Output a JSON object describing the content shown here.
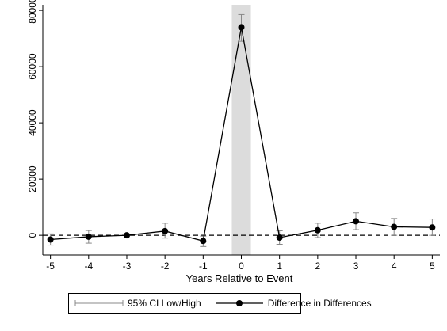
{
  "chart_data": {
    "type": "line",
    "title": "",
    "xlabel": "Years Relative to Event",
    "ylabel": "",
    "x": [
      -5,
      -4,
      -3,
      -2,
      -1,
      0,
      1,
      2,
      3,
      4,
      5
    ],
    "x_ticks": [
      "-5",
      "-4",
      "-3",
      "-2",
      "-1",
      "0",
      "1",
      "2",
      "3",
      "4",
      "5"
    ],
    "y_ticks": [
      "0",
      "20000",
      "40000",
      "60000",
      "80000"
    ],
    "y_tick_values": [
      0,
      20000,
      40000,
      60000,
      80000
    ],
    "xlim": [
      -5.2,
      5.2
    ],
    "ylim": [
      -7000,
      82000
    ],
    "grid": false,
    "legend_position": "bottom",
    "reference_line_y": 0,
    "shaded_band_x": [
      -0.25,
      0.25
    ],
    "series": [
      {
        "name": "Difference in Differences",
        "values": [
          -1500,
          -500,
          0,
          1500,
          -2000,
          74000,
          -800,
          1800,
          5000,
          3000,
          2800
        ],
        "color": "#000000"
      },
      {
        "name": "95% CI Low/High",
        "low": [
          -3500,
          -2800,
          -500,
          -1000,
          -4000,
          69000,
          -3200,
          -800,
          2000,
          0,
          0
        ],
        "high": [
          500,
          1700,
          500,
          4300,
          -300,
          78500,
          1600,
          4300,
          8000,
          6000,
          5800
        ],
        "color": "#888888"
      }
    ],
    "legend": [
      "95% CI Low/High",
      "Difference in Differences"
    ],
    "colors": {
      "band": "#dcdcdc",
      "line": "#000000",
      "ci": "#888888"
    }
  }
}
